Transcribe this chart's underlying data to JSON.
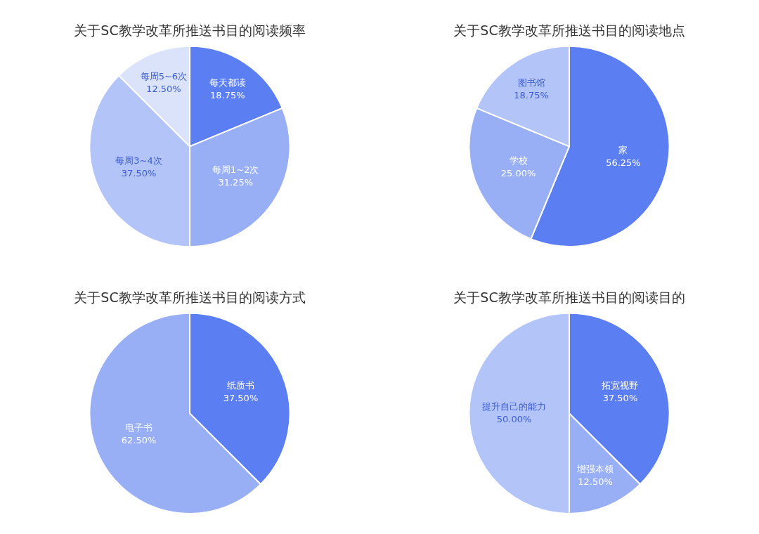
{
  "chart_data": [
    {
      "type": "pie",
      "title": "关于SC教学改革所推送书目的阅读频率",
      "categories": [
        "每天都读",
        "每周1~2次",
        "每周3~4次",
        "每周5~6次"
      ],
      "values": [
        18.75,
        31.25,
        37.5,
        12.5
      ],
      "colors": [
        "#5b7ff3",
        "#98aff6",
        "#b3c4f8",
        "#dbe3fb"
      ],
      "value_labels": [
        "18.75%",
        "31.25%",
        "37.50%",
        "12.50%"
      ]
    },
    {
      "type": "pie",
      "title": "关于SC教学改革所推送书目的阅读地点",
      "categories": [
        "家",
        "学校",
        "图书馆"
      ],
      "values": [
        56.25,
        25,
        18.75
      ],
      "colors": [
        "#5b7ff3",
        "#98aff6",
        "#b3c4f8"
      ],
      "value_labels": [
        "56.25%",
        "25.00%",
        "18.75%"
      ]
    },
    {
      "type": "pie",
      "title": "关于SC教学改革所推送书目的阅读方式",
      "categories": [
        "纸质书",
        "电子书"
      ],
      "values": [
        37.5,
        62.5
      ],
      "colors": [
        "#5b7ff3",
        "#98aff6"
      ],
      "value_labels": [
        "37.50%",
        "62.50%"
      ]
    },
    {
      "type": "pie",
      "title": "关于SC教学改革所推送书目的阅读目的",
      "categories": [
        "拓宽视野",
        "增强本领",
        "提升自己的能力"
      ],
      "values": [
        37.5,
        12.5,
        50
      ],
      "colors": [
        "#5b7ff3",
        "#98aff6",
        "#b3c4f8"
      ],
      "value_labels": [
        "37.50%",
        "12.50%",
        "50.00%"
      ]
    }
  ]
}
